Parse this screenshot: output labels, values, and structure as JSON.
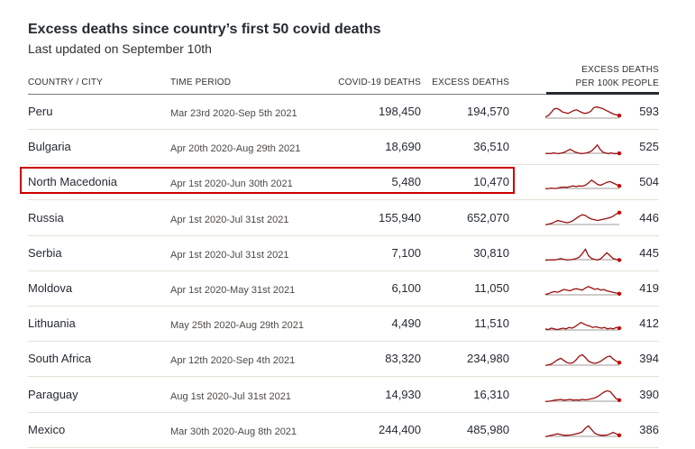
{
  "title": "Excess deaths since country’s first 50 covid deaths",
  "subtitle": "Last updated on September 10th",
  "headers": {
    "country": "COUNTRY / CITY",
    "period": "TIME PERIOD",
    "covid": "COVID-19 DEATHS",
    "excess": "EXCESS DEATHS",
    "per100k_line1": "EXCESS DEATHS",
    "per100k_line2": "PER 100K PEOPLE"
  },
  "colors": {
    "spark": "#990f0f",
    "baseline": "#807973",
    "highlight": "#cc0000"
  },
  "highlighted_row": "North Macedonia",
  "chart_data": {
    "type": "table",
    "columns": [
      "COUNTRY / CITY",
      "TIME PERIOD",
      "COVID-19 DEATHS",
      "EXCESS DEATHS",
      "EXCESS DEATHS PER 100K PEOPLE"
    ],
    "rows": [
      {
        "country": "Peru",
        "period": "Mar 23rd 2020-Sep 5th 2021",
        "covid": "198,450",
        "excess": "194,570",
        "per100k": "593",
        "spark": [
          0.2,
          0.3,
          0.5,
          0.75,
          0.8,
          0.7,
          0.55,
          0.5,
          0.45,
          0.55,
          0.65,
          0.7,
          0.6,
          0.5,
          0.45,
          0.5,
          0.6,
          0.85,
          0.9,
          0.85,
          0.8,
          0.7,
          0.6,
          0.5,
          0.4,
          0.35,
          0.3
        ]
      },
      {
        "country": "Bulgaria",
        "period": "Apr 20th 2020-Aug 29th 2021",
        "covid": "18,690",
        "excess": "36,510",
        "per100k": "525",
        "spark": [
          0.1,
          0.12,
          0.1,
          0.15,
          0.12,
          0.1,
          0.15,
          0.2,
          0.3,
          0.4,
          0.3,
          0.2,
          0.15,
          0.1,
          0.12,
          0.15,
          0.2,
          0.3,
          0.5,
          0.7,
          0.4,
          0.2,
          0.15,
          0.1,
          0.15,
          0.1,
          0.1,
          0.12
        ]
      },
      {
        "country": "North Macedonia",
        "period": "Apr 1st 2020-Jun 30th 2021",
        "covid": "5,480",
        "excess": "10,470",
        "per100k": "504",
        "spark": [
          0.1,
          0.12,
          0.15,
          0.12,
          0.15,
          0.2,
          0.22,
          0.2,
          0.25,
          0.3,
          0.25,
          0.3,
          0.28,
          0.35,
          0.5,
          0.7,
          0.55,
          0.4,
          0.35,
          0.45,
          0.55,
          0.6,
          0.5,
          0.4,
          0.3
        ]
      },
      {
        "country": "Russia",
        "period": "Apr 1st 2020-Jul 31st 2021",
        "covid": "155,940",
        "excess": "652,070",
        "per100k": "446",
        "spark": [
          0.1,
          0.15,
          0.2,
          0.3,
          0.4,
          0.35,
          0.3,
          0.25,
          0.3,
          0.4,
          0.55,
          0.7,
          0.8,
          0.75,
          0.6,
          0.5,
          0.45,
          0.4,
          0.45,
          0.5,
          0.55,
          0.6,
          0.7,
          0.85,
          0.95
        ]
      },
      {
        "country": "Serbia",
        "period": "Apr 1st 2020-Jul 31st 2021",
        "covid": "7,100",
        "excess": "30,810",
        "per100k": "445",
        "spark": [
          0.08,
          0.1,
          0.12,
          0.1,
          0.15,
          0.2,
          0.15,
          0.1,
          0.12,
          0.15,
          0.2,
          0.3,
          0.55,
          0.85,
          0.4,
          0.2,
          0.15,
          0.1,
          0.2,
          0.4,
          0.6,
          0.4,
          0.2,
          0.15,
          0.1
        ]
      },
      {
        "country": "Moldova",
        "period": "Apr 1st 2020-May 31st 2021",
        "covid": "6,100",
        "excess": "11,050",
        "per100k": "419",
        "spark": [
          0.15,
          0.2,
          0.3,
          0.35,
          0.3,
          0.4,
          0.5,
          0.45,
          0.4,
          0.5,
          0.55,
          0.5,
          0.45,
          0.6,
          0.7,
          0.6,
          0.5,
          0.55,
          0.45,
          0.5,
          0.4,
          0.35,
          0.3,
          0.25,
          0.2
        ]
      },
      {
        "country": "Lithuania",
        "period": "May 25th 2020-Aug 29th 2021",
        "covid": "4,490",
        "excess": "11,510",
        "per100k": "412",
        "spark": [
          0.2,
          0.15,
          0.25,
          0.2,
          0.15,
          0.2,
          0.25,
          0.2,
          0.3,
          0.25,
          0.35,
          0.5,
          0.65,
          0.55,
          0.45,
          0.4,
          0.3,
          0.35,
          0.3,
          0.25,
          0.3,
          0.2,
          0.25,
          0.2,
          0.3,
          0.25
        ]
      },
      {
        "country": "South Africa",
        "period": "Apr 12th 2020-Sep 4th 2021",
        "covid": "83,320",
        "excess": "234,980",
        "per100k": "394",
        "spark": [
          0.1,
          0.15,
          0.2,
          0.35,
          0.5,
          0.6,
          0.45,
          0.3,
          0.25,
          0.3,
          0.5,
          0.75,
          0.85,
          0.65,
          0.4,
          0.3,
          0.25,
          0.3,
          0.4,
          0.55,
          0.7,
          0.75,
          0.55,
          0.4,
          0.3
        ]
      },
      {
        "country": "Paraguay",
        "period": "Aug 1st 2020-Jul 31st 2021",
        "covid": "14,930",
        "excess": "16,310",
        "per100k": "390",
        "spark": [
          0.1,
          0.12,
          0.15,
          0.2,
          0.22,
          0.25,
          0.2,
          0.22,
          0.25,
          0.2,
          0.22,
          0.2,
          0.25,
          0.22,
          0.25,
          0.3,
          0.35,
          0.45,
          0.6,
          0.75,
          0.85,
          0.8,
          0.55,
          0.3,
          0.2
        ]
      },
      {
        "country": "Mexico",
        "period": "Mar 30th 2020-Aug 8th 2021",
        "covid": "244,400",
        "excess": "485,980",
        "per100k": "386",
        "spark": [
          0.1,
          0.15,
          0.2,
          0.25,
          0.3,
          0.25,
          0.2,
          0.2,
          0.22,
          0.25,
          0.3,
          0.35,
          0.45,
          0.7,
          0.85,
          0.6,
          0.35,
          0.25,
          0.2,
          0.2,
          0.22,
          0.3,
          0.4,
          0.3,
          0.2
        ]
      }
    ]
  }
}
